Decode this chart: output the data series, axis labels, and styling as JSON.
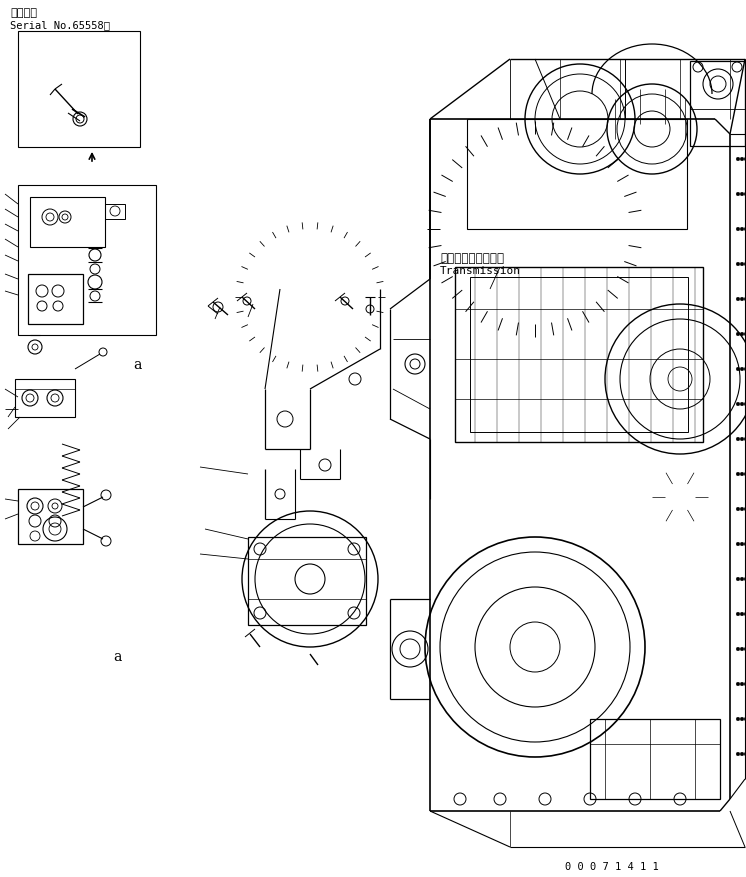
{
  "title_line1": "適用号機",
  "title_line2": "Serial No.65558～",
  "label_japanese": "トランスミッション",
  "label_english": "Transmission",
  "doc_number": "0 0 0 7 1 4 1 1",
  "bg_color": "#ffffff",
  "line_color": "#000000",
  "fig_width": 7.46,
  "fig_height": 8.78,
  "dpi": 100
}
